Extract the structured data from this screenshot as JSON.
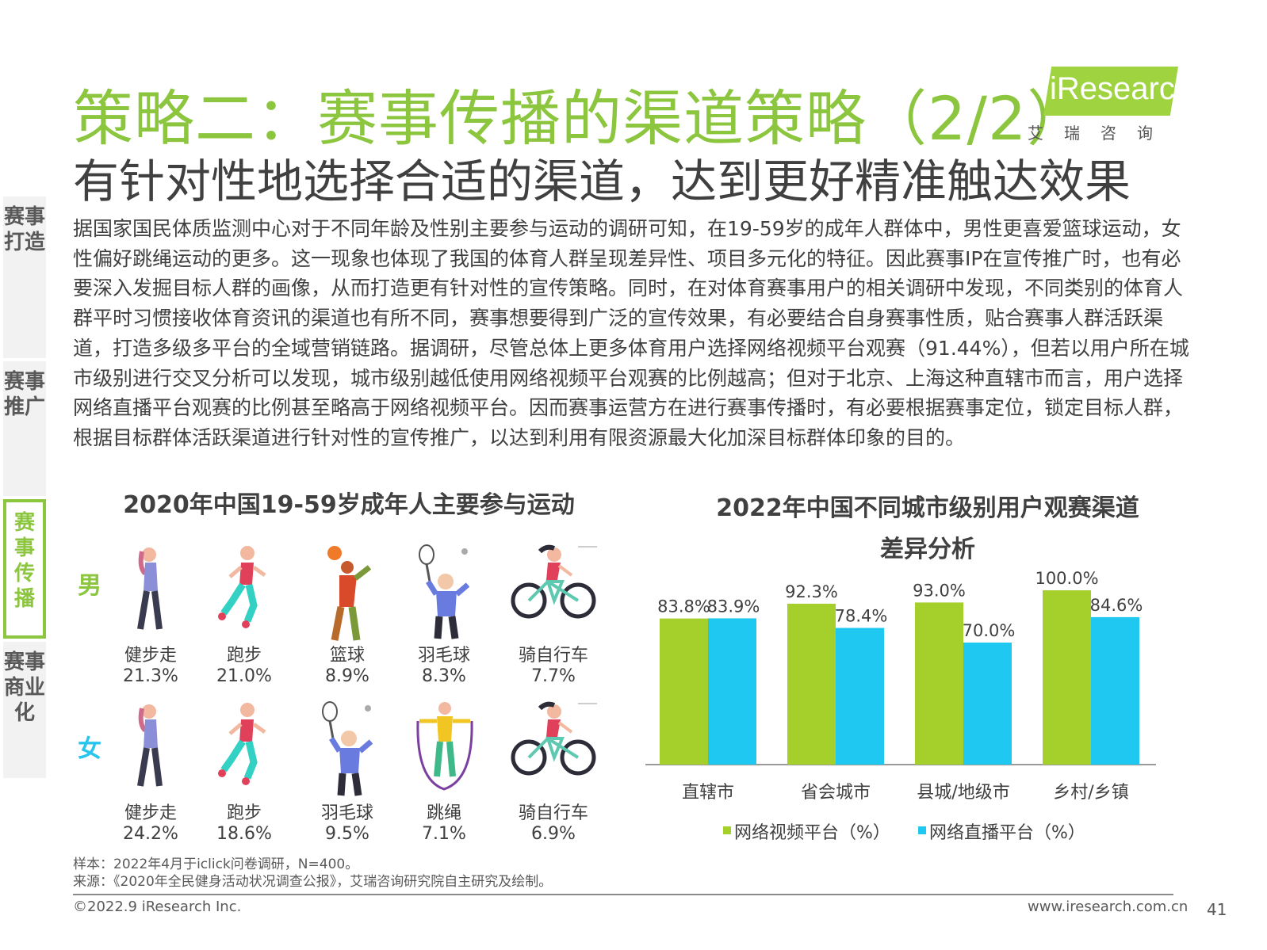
{
  "header": {
    "title": "策略二：赛事传播的渠道策略（2/2）",
    "subtitle": "有针对性地选择合适的渠道，达到更好精准触达效果",
    "logo_text": "iResearch",
    "logo_sub": "艾瑞咨询"
  },
  "body_text": "据国家国民体质监测中心对于不同年龄及性别主要参与运动的调研可知，在19-59岁的成年人群体中，男性更喜爱篮球运动，女性偏好跳绳运动的更多。这一现象也体现了我国的体育人群呈现差异性、项目多元化的特征。因此赛事IP在宣传推广时，也有必要深入发掘目标人群的画像，从而打造更有针对性的宣传策略。同时，在对体育赛事用户的相关调研中发现，不同类别的体育人群平时习惯接收体育资讯的渠道也有所不同，赛事想要得到广泛的宣传效果，有必要结合自身赛事性质，贴合赛事人群活跃渠道，打造多级多平台的全域营销链路。据调研，尽管总体上更多体育用户选择网络视频平台观赛（91.44%），但若以用户所在城市级别进行交叉分析可以发现，城市级别越低使用网络视频平台观赛的比例越高；但对于北京、上海这种直辖市而言，用户选择网络直播平台观赛的比例甚至略高于网络视频平台。因而赛事运营方在进行赛事传播时，有必要根据赛事定位，锁定目标人群，根据目标群体活跃渠道进行针对性的宣传推广，以达到利用有限资源最大化加深目标群体印象的目的。",
  "side_nav": [
    {
      "label": "赛事打造",
      "active": false
    },
    {
      "label": "赛事推广",
      "active": false
    },
    {
      "label": "赛事传播",
      "active": true
    },
    {
      "label": "赛事商业化",
      "active": false
    }
  ],
  "activities": {
    "title": "2020年中国19-59岁成年人主要参与运动",
    "male_label": "男",
    "female_label": "女",
    "male": [
      {
        "name": "健步走",
        "pct": "21.3%",
        "icon": "walking-woman-icon"
      },
      {
        "name": "跑步",
        "pct": "21.0%",
        "icon": "running-icon"
      },
      {
        "name": "篮球",
        "pct": "8.9%",
        "icon": "basketball-player-icon"
      },
      {
        "name": "羽毛球",
        "pct": "8.3%",
        "icon": "badminton-player-icon"
      },
      {
        "name": "骑自行车",
        "pct": "7.7%",
        "icon": "cyclist-icon"
      }
    ],
    "female": [
      {
        "name": "健步走",
        "pct": "24.2%",
        "icon": "walking-woman-icon"
      },
      {
        "name": "跑步",
        "pct": "18.6%",
        "icon": "running-icon"
      },
      {
        "name": "羽毛球",
        "pct": "9.5%",
        "icon": "badminton-player-icon"
      },
      {
        "name": "跳绳",
        "pct": "7.1%",
        "icon": "jump-rope-icon"
      },
      {
        "name": "骑自行车",
        "pct": "6.9%",
        "icon": "cyclist-icon"
      }
    ]
  },
  "chart_title_line1": "2022年中国不同城市级别用户观赛渠道",
  "chart_title_line2": "差异分析",
  "chart_data": {
    "type": "bar",
    "title": "2022年中国不同城市级别用户观赛渠道差异分析",
    "categories": [
      "直辖市",
      "省会城市",
      "县城/地级市",
      "乡村/乡镇"
    ],
    "series": [
      {
        "name": "网络视频平台（%）",
        "values": [
          83.8,
          92.3,
          93.0,
          100.0
        ],
        "labels": [
          "83.8%",
          "92.3%",
          "93.0%",
          "100.0%"
        ],
        "color": "#a5cf2a"
      },
      {
        "name": "网络直播平台（%）",
        "values": [
          83.9,
          78.4,
          70.0,
          84.6
        ],
        "labels": [
          "83.9%",
          "78.4%",
          "70.0%",
          "84.6%"
        ],
        "color": "#1fc8f0"
      }
    ],
    "ylim": [
      0,
      100
    ],
    "legend": "bottom",
    "grid": false
  },
  "footer": {
    "note1": "样本：2022年4月于iclick问卷调研，N=400。",
    "note2": "来源：《2020年全民健身活动状况调查公报》，艾瑞咨询研究院自主研究及绘制。",
    "copyright": "©2022.9 iResearch Inc.",
    "website": "www.iresearch.com.cn",
    "page": "41"
  }
}
